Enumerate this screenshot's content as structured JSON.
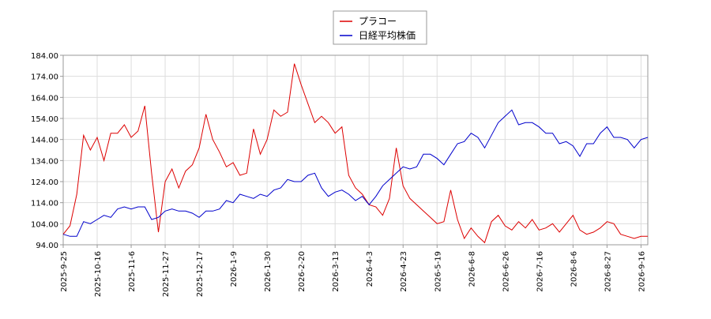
{
  "chart_data": {
    "type": "line",
    "categories": [
      "2025-9-25",
      null,
      null,
      null,
      null,
      "2025-10-16",
      null,
      null,
      null,
      null,
      "2025-11-6",
      null,
      null,
      null,
      null,
      "2025-11-27",
      null,
      null,
      null,
      null,
      "2025-12-17",
      null,
      null,
      null,
      null,
      "2026-1-9",
      null,
      null,
      null,
      null,
      "2026-1-30",
      null,
      null,
      null,
      null,
      "2026-2-20",
      null,
      null,
      null,
      null,
      "2026-3-13",
      null,
      null,
      null,
      null,
      "2026-4-3",
      null,
      null,
      null,
      null,
      "2026-4-23",
      null,
      null,
      null,
      null,
      "2026-5-19",
      null,
      null,
      null,
      null,
      "2026-6-8",
      null,
      null,
      null,
      null,
      "2026-6-26",
      null,
      null,
      null,
      null,
      "2026-7-16",
      null,
      null,
      null,
      null,
      "2026-8-6",
      null,
      null,
      null,
      null,
      "2026-8-27",
      null,
      null,
      null,
      null,
      "2026-9-16",
      null
    ],
    "series": [
      {
        "name": "プラコー",
        "color": "#dd0000",
        "values": [
          99,
          103,
          118,
          146,
          139,
          145,
          134,
          147,
          147,
          151,
          145,
          148,
          160,
          128,
          100,
          124,
          130,
          121,
          129,
          132,
          140,
          156,
          144,
          138,
          131,
          133,
          127,
          128,
          149,
          137,
          144,
          158,
          155,
          157,
          180,
          170,
          161,
          152,
          155,
          152,
          147,
          150,
          127,
          121,
          118,
          113,
          112,
          108,
          116,
          140,
          122,
          116,
          113,
          110,
          107,
          104,
          105,
          120,
          106,
          97,
          102,
          98,
          95,
          105,
          108,
          103,
          101,
          105,
          102,
          106,
          101,
          102,
          104,
          100,
          104,
          108,
          101,
          99,
          100,
          102,
          105,
          104,
          99,
          98,
          97,
          98,
          98
        ]
      },
      {
        "name": "日経平均株価",
        "color": "#0000cc",
        "values": [
          99,
          98,
          98,
          105,
          104,
          106,
          108,
          107,
          111,
          112,
          111,
          112,
          112,
          106,
          107,
          110,
          111,
          110,
          110,
          109,
          107,
          110,
          110,
          111,
          115,
          114,
          118,
          117,
          116,
          118,
          117,
          120,
          121,
          125,
          124,
          124,
          127,
          128,
          121,
          117,
          119,
          120,
          118,
          115,
          117,
          113,
          117,
          122,
          125,
          128,
          131,
          130,
          131,
          137,
          137,
          135,
          132,
          137,
          142,
          143,
          147,
          145,
          140,
          146,
          152,
          155,
          158,
          151,
          152,
          152,
          150,
          147,
          147,
          142,
          143,
          141,
          136,
          142,
          142,
          147,
          150,
          145,
          145,
          144,
          140,
          144,
          145
        ]
      }
    ],
    "ylim": [
      94,
      184
    ],
    "yticks": [
      {
        "value": 94,
        "label": "94.00"
      },
      {
        "value": 104,
        "label": "104.00"
      },
      {
        "value": 114,
        "label": "114.00"
      },
      {
        "value": 124,
        "label": "124.00"
      },
      {
        "value": 134,
        "label": "134.00"
      },
      {
        "value": 144,
        "label": "144.00"
      },
      {
        "value": 154,
        "label": "154.00"
      },
      {
        "value": 164,
        "label": "164.00"
      },
      {
        "value": 174,
        "label": "174.00"
      },
      {
        "value": 184,
        "label": "184.00"
      }
    ],
    "grid": true
  }
}
